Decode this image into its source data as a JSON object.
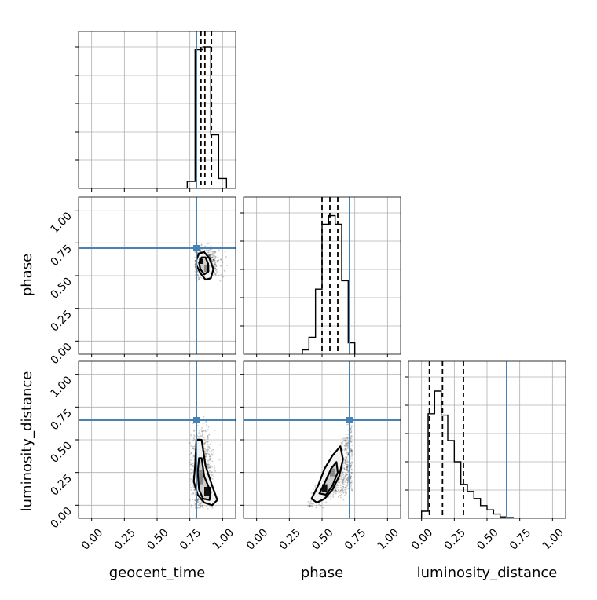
{
  "figure": {
    "type": "corner-plot"
  },
  "axis_labels": {
    "geocent_time": "geocent_time",
    "phase": "phase",
    "luminosity_distance": "luminosity_distance"
  },
  "colors": {
    "truth": "#4682b4",
    "hist": "#000000",
    "grid": "#b0b0b0",
    "points": "#000000"
  },
  "chart_data": [
    {
      "type": "histogram",
      "panel": "geocent_time-hist",
      "xlim": [
        -0.1,
        1.1
      ],
      "grid": true,
      "show_x_ticklabels": false,
      "bin_edges": [
        0.73,
        0.79,
        0.85,
        0.91,
        0.97,
        1.03
      ],
      "counts": [
        0.05,
        0.98,
        1.0,
        0.38,
        0.07
      ],
      "quantiles": [
        0.835,
        0.865,
        0.915
      ],
      "truth": 0.8
    },
    {
      "type": "scatter",
      "panel": "geocent_time-phase",
      "xlim": [
        -0.1,
        1.1
      ],
      "ylim": [
        -0.1,
        1.1
      ],
      "grid": true,
      "ylabel": "phase",
      "yticks": [
        "0.00",
        "0.25",
        "0.50",
        "0.75",
        "1.00"
      ],
      "show_x_ticklabels": false,
      "truth": {
        "x": 0.8,
        "y": 0.71
      },
      "cloud": {
        "cx": 0.87,
        "cy": 0.6,
        "sx": 0.05,
        "sy": 0.055,
        "n": 650,
        "xmin": 0.79,
        "ymax": 0.75
      },
      "contours": [
        [
          [
            0.8,
            0.62
          ],
          [
            0.82,
            0.67
          ],
          [
            0.86,
            0.68
          ],
          [
            0.9,
            0.63
          ],
          [
            0.93,
            0.55
          ],
          [
            0.91,
            0.48
          ],
          [
            0.87,
            0.47
          ],
          [
            0.83,
            0.52
          ],
          [
            0.8,
            0.58
          ]
        ],
        [
          [
            0.82,
            0.6
          ],
          [
            0.84,
            0.64
          ],
          [
            0.87,
            0.64
          ],
          [
            0.89,
            0.59
          ],
          [
            0.89,
            0.53
          ],
          [
            0.86,
            0.51
          ],
          [
            0.83,
            0.55
          ]
        ]
      ],
      "blocks": [
        {
          "x": 0.82,
          "y": 0.59,
          "w": 0.03,
          "h": 0.04,
          "shade": "#111111"
        },
        {
          "x": 0.86,
          "y": 0.53,
          "w": 0.04,
          "h": 0.05,
          "shade": "#888888"
        }
      ]
    },
    {
      "type": "histogram",
      "panel": "phase-hist",
      "xlim": [
        -0.1,
        1.1
      ],
      "grid": true,
      "show_x_ticklabels": false,
      "bin_edges": [
        0.35,
        0.4,
        0.45,
        0.5,
        0.55,
        0.6,
        0.65,
        0.7,
        0.75
      ],
      "counts": [
        0.03,
        0.12,
        0.46,
        0.92,
        0.98,
        0.92,
        0.52,
        0.08
      ],
      "quantiles": [
        0.5,
        0.56,
        0.62
      ],
      "truth": 0.71
    },
    {
      "type": "scatter",
      "panel": "geocent_time-luminosity_distance",
      "xlim": [
        -0.1,
        1.1
      ],
      "ylim": [
        -0.1,
        1.1
      ],
      "grid": true,
      "xlabel": "geocent_time",
      "ylabel": "luminosity_distance",
      "xticks": [
        "0.00",
        "0.25",
        "0.50",
        "0.75",
        "1.00"
      ],
      "yticks": [
        "0.00",
        "0.25",
        "0.50",
        "0.75",
        "1.00"
      ],
      "truth": {
        "x": 0.8,
        "y": 0.65
      },
      "cloud": {
        "cx": 0.84,
        "cy": 0.25,
        "sx": 0.04,
        "sy": 0.17,
        "n": 800,
        "xmin": 0.75,
        "ymax": 0.7
      },
      "contours": [
        [
          [
            0.79,
            0.3
          ],
          [
            0.8,
            0.5
          ],
          [
            0.84,
            0.5
          ],
          [
            0.87,
            0.3
          ],
          [
            0.92,
            0.15
          ],
          [
            0.96,
            0.04
          ],
          [
            0.92,
            0.0
          ],
          [
            0.86,
            0.02
          ],
          [
            0.81,
            0.08
          ],
          [
            0.78,
            0.18
          ]
        ],
        [
          [
            0.81,
            0.25
          ],
          [
            0.82,
            0.36
          ],
          [
            0.84,
            0.36
          ],
          [
            0.86,
            0.22
          ],
          [
            0.91,
            0.1
          ],
          [
            0.9,
            0.04
          ],
          [
            0.85,
            0.05
          ],
          [
            0.82,
            0.12
          ]
        ]
      ],
      "blocks": [
        {
          "x": 0.86,
          "y": 0.07,
          "w": 0.05,
          "h": 0.07,
          "shade": "#111111"
        },
        {
          "x": 0.81,
          "y": 0.16,
          "w": 0.04,
          "h": 0.11,
          "shade": "#888888"
        }
      ]
    },
    {
      "type": "scatter",
      "panel": "phase-luminosity_distance",
      "xlim": [
        -0.1,
        1.1
      ],
      "ylim": [
        -0.1,
        1.1
      ],
      "grid": true,
      "xlabel": "phase",
      "show_y_ticklabels": false,
      "xticks": [
        "0.00",
        "0.25",
        "0.50",
        "0.75",
        "1.00"
      ],
      "truth": {
        "x": 0.71,
        "y": 0.65
      },
      "cloud": {
        "corr": true,
        "n": 800,
        "xmin": 0.3,
        "xmax": 0.75
      },
      "contours": [
        [
          [
            0.42,
            0.05
          ],
          [
            0.47,
            0.15
          ],
          [
            0.52,
            0.28
          ],
          [
            0.58,
            0.38
          ],
          [
            0.64,
            0.45
          ],
          [
            0.66,
            0.35
          ],
          [
            0.63,
            0.22
          ],
          [
            0.58,
            0.12
          ],
          [
            0.52,
            0.05
          ],
          [
            0.46,
            0.02
          ]
        ],
        [
          [
            0.48,
            0.09
          ],
          [
            0.52,
            0.17
          ],
          [
            0.57,
            0.28
          ],
          [
            0.61,
            0.33
          ],
          [
            0.62,
            0.25
          ],
          [
            0.58,
            0.15
          ],
          [
            0.53,
            0.08
          ]
        ]
      ],
      "blocks": [
        {
          "x": 0.5,
          "y": 0.1,
          "w": 0.04,
          "h": 0.06,
          "shade": "#111111"
        },
        {
          "x": 0.56,
          "y": 0.22,
          "w": 0.04,
          "h": 0.06,
          "shade": "#888888"
        }
      ]
    },
    {
      "type": "histogram",
      "panel": "luminosity_distance-hist",
      "xlim": [
        -0.1,
        1.1
      ],
      "grid": true,
      "xlabel": "luminosity_distance",
      "xticks": [
        "0.00",
        "0.25",
        "0.50",
        "0.75",
        "1.00"
      ],
      "bin_edges": [
        0.0,
        0.05,
        0.1,
        0.15,
        0.2,
        0.25,
        0.3,
        0.35,
        0.4,
        0.45,
        0.5,
        0.55,
        0.6,
        0.65,
        0.7
      ],
      "counts": [
        0.05,
        0.74,
        0.9,
        0.73,
        0.55,
        0.4,
        0.24,
        0.19,
        0.14,
        0.09,
        0.06,
        0.03,
        0.01,
        0.005
      ],
      "quantiles": [
        0.06,
        0.16,
        0.32
      ],
      "truth": 0.65
    }
  ]
}
